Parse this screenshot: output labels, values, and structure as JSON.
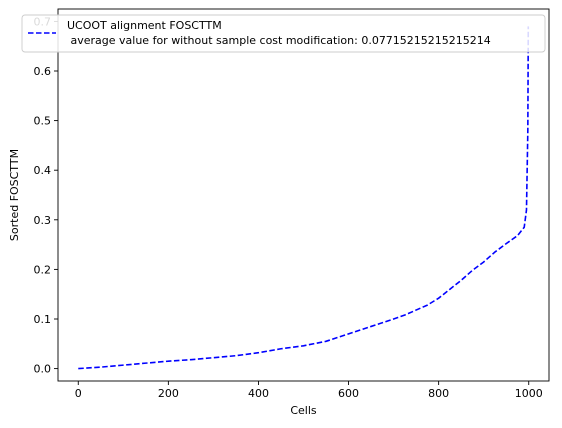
{
  "chart_data": {
    "type": "line",
    "title": "",
    "xlabel": "Cells",
    "ylabel": "Sorted FOSCTTM",
    "xlim": [
      -45,
      1045
    ],
    "ylim": [
      -0.025,
      0.725
    ],
    "x_ticks": [
      0,
      200,
      400,
      600,
      800,
      1000
    ],
    "x_tick_labels": [
      "0",
      "200",
      "400",
      "600",
      "800",
      "1000"
    ],
    "y_ticks": [
      0.0,
      0.1,
      0.2,
      0.3,
      0.4,
      0.5,
      0.6,
      0.7
    ],
    "y_tick_labels": [
      "0.0",
      "0.1",
      "0.2",
      "0.3",
      "0.4",
      "0.5",
      "0.6",
      "0.7"
    ],
    "grid": false,
    "legend_position": "top-right",
    "series": [
      {
        "name": "UCOOT alignment FOSCTTM",
        "name_line2": " average value for without sample cost modification: 0.07715215215215214",
        "color": "#0000ff",
        "line_style": "dashed",
        "x": [
          0,
          50,
          100,
          150,
          200,
          250,
          300,
          350,
          400,
          450,
          500,
          550,
          600,
          650,
          700,
          725,
          750,
          775,
          800,
          825,
          850,
          875,
          900,
          925,
          950,
          975,
          990,
          995,
          998,
          999
        ],
        "y": [
          0.0,
          0.003,
          0.007,
          0.011,
          0.015,
          0.018,
          0.022,
          0.026,
          0.032,
          0.04,
          0.046,
          0.055,
          0.07,
          0.085,
          0.1,
          0.108,
          0.118,
          0.128,
          0.142,
          0.16,
          0.178,
          0.198,
          0.215,
          0.235,
          0.252,
          0.268,
          0.285,
          0.32,
          0.48,
          0.69
        ]
      }
    ]
  }
}
